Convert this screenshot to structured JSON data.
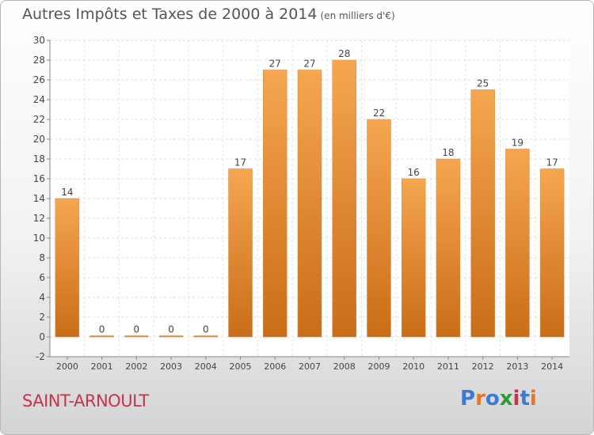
{
  "header": {
    "title": "Autres Impôts et Taxes de 2000 à 2014",
    "unit": "(en milliers d'€)"
  },
  "footer": {
    "commune": "SAINT-ARNOULT",
    "logo": "Proxiti"
  },
  "colors": {
    "bar_top": "#f6a650",
    "bar_bottom": "#c96d18",
    "commune": "#c4344a",
    "logo": [
      "#3a7bd5",
      "#e8742a",
      "#3a7bd5",
      "#2e9b3a",
      "#c4344a",
      "#3a7bd5",
      "#e8742a"
    ]
  },
  "chart_data": {
    "type": "bar",
    "title": "Autres Impôts et Taxes de 2000 à 2014",
    "xlabel": "",
    "ylabel": "",
    "ylim": [
      -2,
      30
    ],
    "yticks": [
      -2,
      0,
      2,
      4,
      6,
      8,
      10,
      12,
      14,
      16,
      18,
      20,
      22,
      24,
      26,
      28,
      30
    ],
    "grid": true,
    "categories": [
      "2000",
      "2001",
      "2002",
      "2003",
      "2004",
      "2005",
      "2006",
      "2007",
      "2008",
      "2009",
      "2010",
      "2011",
      "2012",
      "2013",
      "2014"
    ],
    "values": [
      14,
      0,
      0,
      0,
      0,
      17,
      27,
      27,
      28,
      22,
      16,
      18,
      25,
      19,
      17
    ]
  }
}
